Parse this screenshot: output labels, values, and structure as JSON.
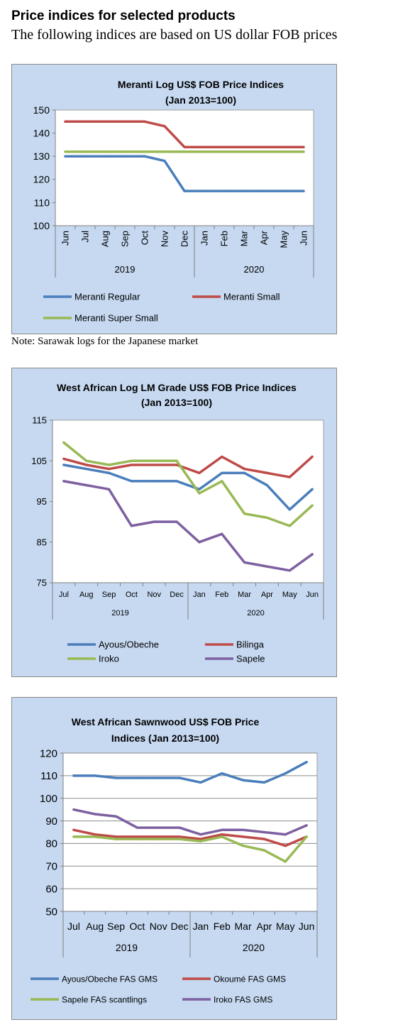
{
  "page": {
    "heading": "Price indices for selected products",
    "subheading": "The following indices are based on US dollar FOB prices",
    "note": "Note: Sarawak logs for the Japanese market"
  },
  "colors": {
    "blue": "#4a7ebb",
    "red": "#be4b48",
    "green": "#98b954",
    "purple": "#7d60a0",
    "panel_bg": "#c6d9f1",
    "plot_bg": "#ffffff"
  },
  "chart_data": [
    {
      "type": "line",
      "title": "Meranti Log US$ FOB Price Indices",
      "subtitle": "(Jan 2013=100)",
      "categories": [
        "Jun",
        "Jul",
        "Aug",
        "Sep",
        "Oct",
        "Nov",
        "Dec",
        "Jan",
        "Feb",
        "Mar",
        "Apr",
        "May",
        "Jun"
      ],
      "tick_rotation": -90,
      "years": [
        {
          "label": "2019",
          "start": 0,
          "end": 6
        },
        {
          "label": "2020",
          "start": 7,
          "end": 12
        }
      ],
      "ylim": [
        100,
        150
      ],
      "yticks": [
        100,
        110,
        120,
        130,
        140,
        150
      ],
      "grid": false,
      "legend": "bottom",
      "series": [
        {
          "name": "Meranti Regular",
          "color": "#4a7ebb",
          "values": [
            130,
            130,
            130,
            130,
            130,
            128,
            115,
            115,
            115,
            115,
            115,
            115,
            115
          ]
        },
        {
          "name": "Meranti Small",
          "color": "#be4b48",
          "values": [
            145,
            145,
            145,
            145,
            145,
            143,
            134,
            134,
            134,
            134,
            134,
            134,
            134
          ]
        },
        {
          "name": "Meranti Super Small",
          "color": "#98b954",
          "values": [
            132,
            132,
            132,
            132,
            132,
            132,
            132,
            132,
            132,
            132,
            132,
            132,
            132
          ]
        }
      ]
    },
    {
      "type": "line",
      "title": "West African Log LM Grade US$ FOB Price Indices",
      "subtitle": "(Jan 2013=100)",
      "categories": [
        "Jul",
        "Aug",
        "Sep",
        "Oct",
        "Nov",
        "Dec",
        "Jan",
        "Feb",
        "Mar",
        "Apr",
        "May",
        "Jun"
      ],
      "tick_rotation": 0,
      "years": [
        {
          "label": "2019",
          "start": 0,
          "end": 5
        },
        {
          "label": "2020",
          "start": 6,
          "end": 11
        }
      ],
      "ylim": [
        75,
        115
      ],
      "yticks": [
        75,
        85,
        95,
        105,
        115
      ],
      "grid": false,
      "legend": "bottom",
      "series": [
        {
          "name": "Ayous/Obeche",
          "color": "#4a7ebb",
          "values": [
            104,
            103,
            102,
            100,
            100,
            100,
            98,
            102,
            102,
            99,
            93,
            98
          ]
        },
        {
          "name": "Bilinga",
          "color": "#be4b48",
          "values": [
            105.5,
            104,
            103,
            104,
            104,
            104,
            102,
            106,
            103,
            102,
            101,
            106
          ]
        },
        {
          "name": "Iroko",
          "color": "#98b954",
          "values": [
            109.5,
            105,
            104,
            105,
            105,
            105,
            97,
            100,
            92,
            91,
            89,
            94
          ]
        },
        {
          "name": "Sapele",
          "color": "#7d60a0",
          "values": [
            100,
            99,
            98,
            89,
            90,
            90,
            85,
            87,
            80,
            79,
            78,
            82
          ]
        }
      ]
    },
    {
      "type": "line",
      "title": "West African Sawnwood US$ FOB Price",
      "subtitle": "Indices (Jan 2013=100)",
      "categories": [
        "Jul",
        "Aug",
        "Sep",
        "Oct",
        "Nov",
        "Dec",
        "Jan",
        "Feb",
        "Mar",
        "Apr",
        "May",
        "Jun"
      ],
      "tick_rotation": 0,
      "years": [
        {
          "label": "2019",
          "start": 0,
          "end": 5
        },
        {
          "label": "2020",
          "start": 6,
          "end": 11
        }
      ],
      "ylim": [
        50,
        120
      ],
      "yticks": [
        50,
        60,
        70,
        80,
        90,
        100,
        110,
        120
      ],
      "grid": true,
      "legend": "bottom",
      "series": [
        {
          "name": "Ayous/Obeche  FAS GMS",
          "color": "#4a7ebb",
          "values": [
            110,
            110,
            109,
            109,
            109,
            109,
            107,
            111,
            108,
            107,
            111,
            116
          ]
        },
        {
          "name": "Okoumé  FAS GMS",
          "color": "#be4b48",
          "values": [
            86,
            84,
            83,
            83,
            83,
            83,
            82,
            84,
            83,
            82,
            79,
            83
          ]
        },
        {
          "name": "Sapele FAS scantlings",
          "color": "#98b954",
          "values": [
            83,
            83,
            82,
            82,
            82,
            82,
            81,
            83,
            79,
            77,
            72,
            83
          ]
        },
        {
          "name": "Iroko FAS GMS",
          "color": "#7d60a0",
          "values": [
            95,
            93,
            92,
            87,
            87,
            87,
            84,
            86,
            86,
            85,
            84,
            88
          ]
        }
      ]
    }
  ]
}
